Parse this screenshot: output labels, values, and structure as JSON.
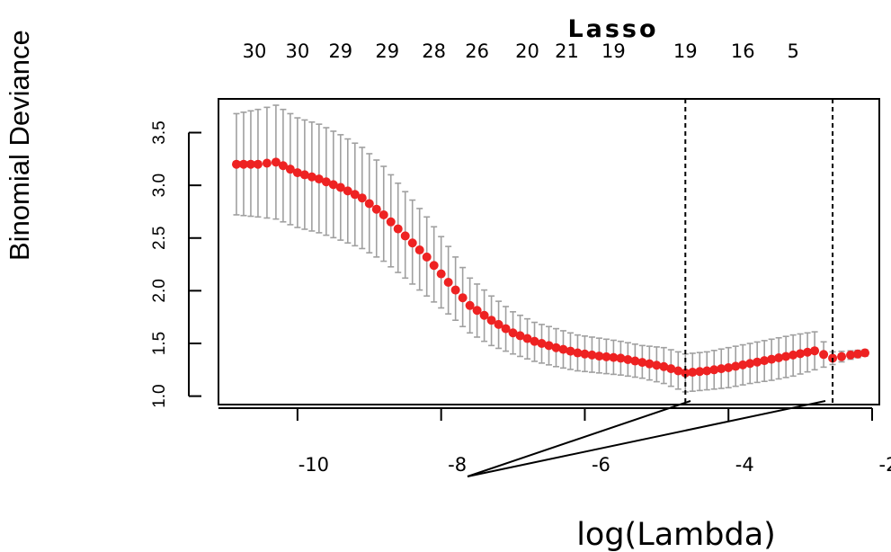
{
  "chart_data": {
    "type": "line",
    "title": "Lasso",
    "xlabel": "log(Lambda)",
    "ylabel": "Binomial Deviance",
    "xlim": [
      -11.1,
      -1.9
    ],
    "ylim": [
      0.92,
      3.82
    ],
    "x_ticks": [
      -10,
      -8,
      -6,
      -4,
      -2
    ],
    "x_tick_labels": [
      "-10",
      "-8",
      "-6",
      "-4",
      "-2"
    ],
    "y_ticks": [
      1.0,
      1.5,
      2.0,
      2.5,
      3.0,
      3.5
    ],
    "y_tick_labels": [
      "1.0",
      "1.5",
      "2.0",
      "2.5",
      "3.0",
      "3.5"
    ],
    "top_axis_labels": [
      "30",
      "30",
      "29",
      "29",
      "28",
      "26",
      "20",
      "21",
      "19",
      "19",
      "16",
      "5"
    ],
    "top_axis_positions": [
      -10.6,
      -10.0,
      -9.4,
      -8.75,
      -8.1,
      -7.5,
      -6.8,
      -6.25,
      -5.6,
      -4.6,
      -3.8,
      -3.1
    ],
    "reference_lines": [
      {
        "name": "lambda.min",
        "x": -4.6
      },
      {
        "name": "lambda.1se",
        "x": -2.55
      }
    ],
    "grid": false,
    "series": [
      {
        "color": "#ee2222",
        "errorbar_color": "#a0a0a0",
        "points": [
          {
            "x": -10.85,
            "y": 3.2,
            "lo": 2.72,
            "hi": 3.68
          },
          {
            "x": -10.55,
            "y": 3.2,
            "lo": 2.7,
            "hi": 3.72
          },
          {
            "x": -10.3,
            "y": 3.22,
            "lo": 2.68,
            "hi": 3.76
          },
          {
            "x": -10.0,
            "y": 3.12,
            "lo": 2.6,
            "hi": 3.64
          },
          {
            "x": -9.7,
            "y": 3.06,
            "lo": 2.55,
            "hi": 3.58
          },
          {
            "x": -9.4,
            "y": 2.98,
            "lo": 2.48,
            "hi": 3.48
          },
          {
            "x": -9.1,
            "y": 2.88,
            "lo": 2.4,
            "hi": 3.36
          },
          {
            "x": -8.8,
            "y": 2.72,
            "lo": 2.28,
            "hi": 3.18
          },
          {
            "x": -8.5,
            "y": 2.52,
            "lo": 2.12,
            "hi": 2.94
          },
          {
            "x": -8.2,
            "y": 2.32,
            "lo": 1.95,
            "hi": 2.7
          },
          {
            "x": -7.9,
            "y": 2.08,
            "lo": 1.78,
            "hi": 2.42
          },
          {
            "x": -7.6,
            "y": 1.86,
            "lo": 1.6,
            "hi": 2.12
          },
          {
            "x": -7.3,
            "y": 1.72,
            "lo": 1.48,
            "hi": 1.95
          },
          {
            "x": -7.0,
            "y": 1.6,
            "lo": 1.4,
            "hi": 1.8
          },
          {
            "x": -6.7,
            "y": 1.52,
            "lo": 1.33,
            "hi": 1.7
          },
          {
            "x": -6.4,
            "y": 1.46,
            "lo": 1.28,
            "hi": 1.64
          },
          {
            "x": -6.1,
            "y": 1.41,
            "lo": 1.24,
            "hi": 1.58
          },
          {
            "x": -5.8,
            "y": 1.38,
            "lo": 1.22,
            "hi": 1.55
          },
          {
            "x": -5.5,
            "y": 1.36,
            "lo": 1.2,
            "hi": 1.52
          },
          {
            "x": -5.2,
            "y": 1.32,
            "lo": 1.17,
            "hi": 1.48
          },
          {
            "x": -4.9,
            "y": 1.28,
            "lo": 1.12,
            "hi": 1.46
          },
          {
            "x": -4.6,
            "y": 1.22,
            "lo": 1.04,
            "hi": 1.4
          },
          {
            "x": -4.3,
            "y": 1.24,
            "lo": 1.06,
            "hi": 1.42
          },
          {
            "x": -4.0,
            "y": 1.27,
            "lo": 1.08,
            "hi": 1.46
          },
          {
            "x": -3.7,
            "y": 1.31,
            "lo": 1.12,
            "hi": 1.5
          },
          {
            "x": -3.4,
            "y": 1.35,
            "lo": 1.15,
            "hi": 1.54
          },
          {
            "x": -3.1,
            "y": 1.39,
            "lo": 1.19,
            "hi": 1.58
          },
          {
            "x": -2.8,
            "y": 1.43,
            "lo": 1.25,
            "hi": 1.61
          },
          {
            "x": -2.55,
            "y": 1.36,
            "lo": 1.3,
            "hi": 1.42
          },
          {
            "x": -2.3,
            "y": 1.39,
            "lo": 1.35,
            "hi": 1.43
          },
          {
            "x": -2.1,
            "y": 1.41,
            "lo": 1.38,
            "hi": 1.44
          }
        ]
      }
    ]
  }
}
